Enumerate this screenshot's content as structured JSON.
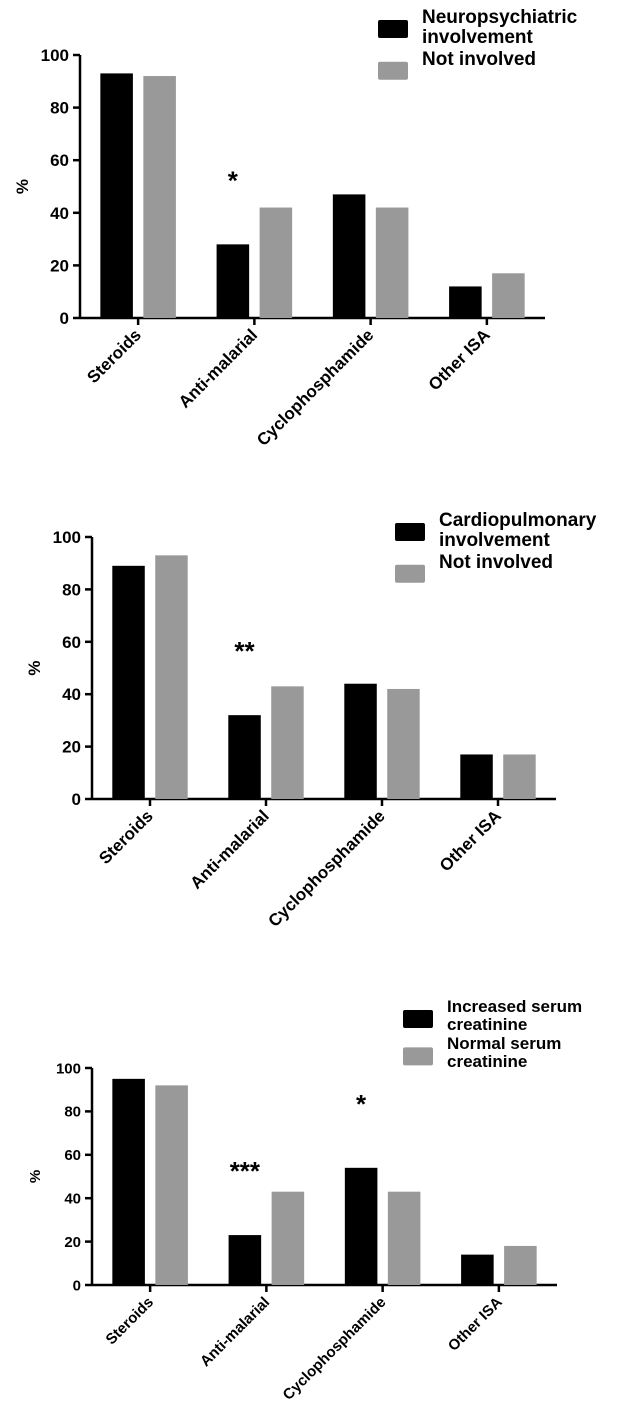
{
  "chart_data": [
    {
      "type": "bar",
      "y_label": "%",
      "categories": [
        "Steroids",
        "Anti-malarial",
        "Cyclophosphamide",
        "Other ISA"
      ],
      "series": [
        {
          "name": "Neuropsychiatric involvement",
          "color": "#000000",
          "values": [
            93,
            28,
            47,
            12
          ]
        },
        {
          "name": "Not involved",
          "color": "#999999",
          "values": [
            92,
            42,
            42,
            17
          ]
        }
      ],
      "ylim": [
        0,
        100
      ],
      "yticks": [
        0,
        20,
        40,
        60,
        80,
        100
      ],
      "annotations": [
        {
          "text": "*",
          "category": "Anti-malarial"
        }
      ]
    },
    {
      "type": "bar",
      "y_label": "%",
      "categories": [
        "Steroids",
        "Anti-malarial",
        "Cyclophosphamide",
        "Other ISA"
      ],
      "series": [
        {
          "name": "Cardiopulmonary involvement",
          "color": "#000000",
          "values": [
            89,
            32,
            44,
            17
          ]
        },
        {
          "name": "Not involved",
          "color": "#999999",
          "values": [
            93,
            43,
            42,
            17
          ]
        }
      ],
      "ylim": [
        0,
        100
      ],
      "yticks": [
        0,
        20,
        40,
        60,
        80,
        100
      ],
      "annotations": [
        {
          "text": "**",
          "category": "Anti-malarial"
        }
      ]
    },
    {
      "type": "bar",
      "y_label": "%",
      "categories": [
        "Steroids",
        "Anti-malarial",
        "Cyclophosphamide",
        "Other ISA"
      ],
      "series": [
        {
          "name": "Increased serum creatinine",
          "color": "#000000",
          "values": [
            95,
            23,
            54,
            14
          ]
        },
        {
          "name": "Normal serum creatinine",
          "color": "#999999",
          "values": [
            92,
            43,
            43,
            18
          ]
        }
      ],
      "ylim": [
        0,
        100
      ],
      "yticks": [
        0,
        20,
        40,
        60,
        80,
        100
      ],
      "annotations": [
        {
          "text": "***",
          "category": "Anti-malarial"
        },
        {
          "text": "*",
          "category": "Cyclophosphamide"
        }
      ]
    }
  ]
}
